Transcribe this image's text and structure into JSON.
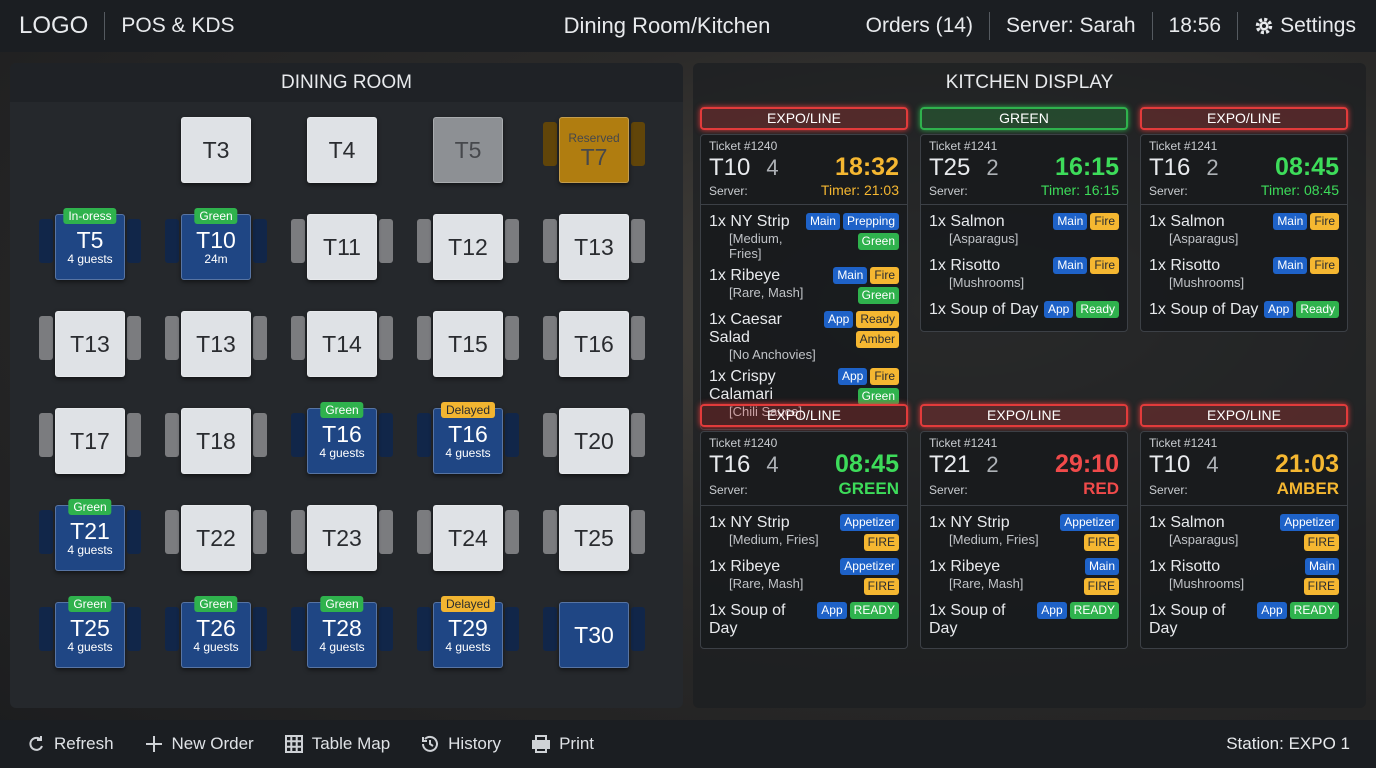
{
  "header": {
    "logo": "LOGO",
    "app": "POS & KDS",
    "title": "Dining Room/Kitchen",
    "orders": "Orders (14)",
    "server": "Server: Sarah",
    "time": "18:56",
    "settings": "Settings"
  },
  "dining": {
    "title": "DINING ROOM",
    "tables": [
      {
        "label": "T3",
        "color": "#dfe2e6"
      },
      {
        "label": "T4",
        "color": "#dfe2e6"
      },
      {
        "label": "T5",
        "color": "#8d9094"
      },
      {
        "label": "T7",
        "top": "Reserved",
        "color": "#b07d10"
      },
      {
        "label": "T5",
        "badge": {
          "text": "In-oress",
          "color": "#2fb24d"
        },
        "sub": "4 guests",
        "color": "#1f4684"
      },
      {
        "label": "T10",
        "badge": {
          "text": "Green",
          "color": "#2fb24d"
        },
        "sub": "24m",
        "color": "#1f4684"
      },
      {
        "label": "T11",
        "color": "#dfe2e6"
      },
      {
        "label": "T12",
        "color": "#dfe2e6"
      },
      {
        "label": "T13",
        "color": "#dfe2e6"
      },
      {
        "label": "T13",
        "color": "#dfe2e6"
      },
      {
        "label": "T13",
        "color": "#dfe2e6"
      },
      {
        "label": "T14",
        "color": "#dfe2e6"
      },
      {
        "label": "T15",
        "color": "#dfe2e6"
      },
      {
        "label": "T16",
        "color": "#dfe2e6"
      },
      {
        "label": "T17",
        "color": "#dfe2e6"
      },
      {
        "label": "T18",
        "color": "#dfe2e6"
      },
      {
        "label": "T16",
        "badge": {
          "text": "Green",
          "color": "#2fb24d"
        },
        "sub": "4 guests",
        "color": "#1f4684"
      },
      {
        "label": "T16",
        "badge": {
          "text": "Delayed",
          "color": "#f2b531"
        },
        "sub": "4 guests",
        "color": "#1f4684"
      },
      {
        "label": "T20",
        "color": "#dfe2e6"
      },
      {
        "label": "T21",
        "badge": {
          "text": "Green",
          "color": "#2fb24d"
        },
        "sub": "4 guests",
        "color": "#1f4684"
      },
      {
        "label": "T22",
        "color": "#dfe2e6"
      },
      {
        "label": "T23",
        "color": "#dfe2e6"
      },
      {
        "label": "T24",
        "color": "#dfe2e6"
      },
      {
        "label": "T25",
        "color": "#dfe2e6"
      },
      {
        "label": "T25",
        "badge": {
          "text": "Green",
          "color": "#2fb24d"
        },
        "sub": "4 guests",
        "color": "#1f4684"
      },
      {
        "label": "T26",
        "badge": {
          "text": "Green",
          "color": "#2fb24d"
        },
        "sub": "4 guests",
        "color": "#1f4684"
      },
      {
        "label": "T28",
        "badge": {
          "text": "Green",
          "color": "#2fb24d"
        },
        "sub": "4 guests",
        "color": "#1f4684"
      },
      {
        "label": "T29",
        "badge": {
          "text": "Delayed",
          "color": "#f2b531"
        },
        "sub": "4 guests",
        "color": "#1f4684"
      },
      {
        "label": "T30",
        "color": "#1f4684"
      }
    ]
  },
  "kitchen": {
    "title": "KITCHEN DISPLAY",
    "tickets": [
      {
        "header": "EXPO/LINE",
        "color": "#e23b3b",
        "ticket": "Ticket #1240",
        "table": "T10",
        "guests": "4",
        "time": "18:32",
        "time_color": "#f5b731",
        "server": "Server:",
        "timer": "Timer: 21:03",
        "items": [
          {
            "name": "1x NY Strip",
            "note": "[Medium, Fries]",
            "tags": [
              [
                {
                  "text": "Main",
                  "color": "#1e62c8"
                },
                {
                  "text": "Prepping",
                  "color": "#1e62c8"
                }
              ],
              [
                {
                  "text": "Green",
                  "color": "#2fb24d"
                }
              ]
            ]
          },
          {
            "name": "1x Ribeye",
            "note": "[Rare, Mash]",
            "tags": [
              [
                {
                  "text": "Main",
                  "color": "#1e62c8"
                },
                {
                  "text": "Fire",
                  "color": "#f5b731"
                }
              ],
              [
                {
                  "text": "Green",
                  "color": "#2fb24d"
                }
              ]
            ]
          },
          {
            "name": "1x Caesar Salad",
            "note": "[No Anchovies]",
            "tags": [
              [
                {
                  "text": "App",
                  "color": "#1e62c8"
                },
                {
                  "text": "Ready",
                  "color": "#f5b731"
                }
              ],
              [
                {
                  "text": "Amber",
                  "color": "#f5b731"
                }
              ]
            ]
          },
          {
            "name": "1x Crispy Calamari",
            "note": "[Chili Sauce]",
            "tags": [
              [
                {
                  "text": "App",
                  "color": "#1e62c8"
                },
                {
                  "text": "Fire",
                  "color": "#f5b731"
                }
              ],
              [
                {
                  "text": "Green",
                  "color": "#2fb24d"
                }
              ]
            ]
          }
        ]
      },
      {
        "header": "GREEN",
        "color": "#2fb24d",
        "ticket": "Ticket #1241",
        "table": "T25",
        "guests": "2",
        "time": "16:15",
        "time_color": "#3ddc5a",
        "server": "Server:",
        "timer": "Timer: 16:15",
        "items": [
          {
            "name": "1x Salmon",
            "note": "[Asparagus]",
            "tags": [
              [
                {
                  "text": "Main",
                  "color": "#1e62c8"
                },
                {
                  "text": "Fire",
                  "color": "#f5b731"
                }
              ]
            ]
          },
          {
            "name": "1x Risotto",
            "note": "[Mushrooms]",
            "tags": [
              [
                {
                  "text": "Main",
                  "color": "#1e62c8"
                },
                {
                  "text": "Fire",
                  "color": "#f5b731"
                }
              ]
            ]
          },
          {
            "name": "1x Soup of Day",
            "tags": [
              [
                {
                  "text": "App",
                  "color": "#1e62c8"
                },
                {
                  "text": "Ready",
                  "color": "#2fb24d"
                }
              ]
            ]
          }
        ]
      },
      {
        "header": "EXPO/LINE",
        "color": "#e23b3b",
        "ticket": "Ticket #1241",
        "table": "T16",
        "guests": "2",
        "time": "08:45",
        "time_color": "#3ddc5a",
        "server": "Server:",
        "timer": "Timer: 08:45",
        "items": [
          {
            "name": "1x Salmon",
            "note": "[Asparagus]",
            "tags": [
              [
                {
                  "text": "Main",
                  "color": "#1e62c8"
                },
                {
                  "text": "Fire",
                  "color": "#f5b731"
                }
              ]
            ]
          },
          {
            "name": "1x Risotto",
            "note": "[Mushrooms]",
            "tags": [
              [
                {
                  "text": "Main",
                  "color": "#1e62c8"
                },
                {
                  "text": "Fire",
                  "color": "#f5b731"
                }
              ]
            ]
          },
          {
            "name": "1x Soup of Day",
            "tags": [
              [
                {
                  "text": "App",
                  "color": "#1e62c8"
                },
                {
                  "text": "Ready",
                  "color": "#2fb24d"
                }
              ]
            ]
          }
        ]
      },
      {
        "header": "EXPO/LINE",
        "color": "#e23b3b",
        "ticket": "Ticket #1240",
        "table": "T16",
        "guests": "4",
        "time": "08:45",
        "time_color": "#3ddc5a",
        "server": "Server:",
        "status": "GREEN",
        "items": [
          {
            "name": "1x NY Strip",
            "note": "[Medium, Fries]",
            "tags": [
              [
                {
                  "text": "Appetizer",
                  "color": "#1e62c8"
                }
              ],
              [
                {
                  "text": "FIRE",
                  "color": "#f5b731"
                }
              ]
            ]
          },
          {
            "name": "1x Ribeye",
            "note": "[Rare, Mash]",
            "tags": [
              [
                {
                  "text": "Appetizer",
                  "color": "#1e62c8"
                }
              ],
              [
                {
                  "text": "FIRE",
                  "color": "#f5b731"
                }
              ]
            ]
          },
          {
            "name": "1x Soup of Day",
            "tags": [
              [
                {
                  "text": "App",
                  "color": "#1e62c8"
                },
                {
                  "text": "READY",
                  "color": "#2fb24d"
                }
              ]
            ]
          }
        ]
      },
      {
        "header": "EXPO/LINE",
        "color": "#e23b3b",
        "ticket": "Ticket #1241",
        "table": "T21",
        "guests": "2",
        "time": "29:10",
        "time_color": "#f04a4a",
        "server": "Server:",
        "status": "RED",
        "items": [
          {
            "name": "1x NY Strip",
            "note": "[Medium, Fries]",
            "tags": [
              [
                {
                  "text": "Appetizer",
                  "color": "#1e62c8"
                }
              ],
              [
                {
                  "text": "FIRE",
                  "color": "#f5b731"
                }
              ]
            ]
          },
          {
            "name": "1x Ribeye",
            "note": "[Rare, Mash]",
            "tags": [
              [
                {
                  "text": "Main",
                  "color": "#1e62c8"
                }
              ],
              [
                {
                  "text": "FIRE",
                  "color": "#f5b731"
                }
              ]
            ]
          },
          {
            "name": "1x Soup of Day",
            "tags": [
              [
                {
                  "text": "App",
                  "color": "#1e62c8"
                },
                {
                  "text": "READY",
                  "color": "#2fb24d"
                }
              ]
            ]
          }
        ]
      },
      {
        "header": "EXPO/LINE",
        "color": "#e23b3b",
        "ticket": "Ticket #1241",
        "table": "T10",
        "guests": "4",
        "time": "21:03",
        "time_color": "#f5b731",
        "server": "Server:",
        "status": "AMBER",
        "items": [
          {
            "name": "1x Salmon",
            "note": "[Asparagus]",
            "tags": [
              [
                {
                  "text": "Appetizer",
                  "color": "#1e62c8"
                }
              ],
              [
                {
                  "text": "FIRE",
                  "color": "#f5b731"
                }
              ]
            ]
          },
          {
            "name": "1x Risotto",
            "note": "[Mushrooms]",
            "tags": [
              [
                {
                  "text": "Main",
                  "color": "#1e62c8"
                }
              ],
              [
                {
                  "text": "FIRE",
                  "color": "#f5b731"
                }
              ]
            ]
          },
          {
            "name": "1x Soup of Day",
            "tags": [
              [
                {
                  "text": "App",
                  "color": "#1e62c8"
                },
                {
                  "text": "READY",
                  "color": "#2fb24d"
                }
              ]
            ]
          }
        ]
      }
    ]
  },
  "footer": {
    "buttons": [
      "Refresh",
      "New Order",
      "Table Map",
      "History",
      "Print"
    ],
    "station": "Station: EXPO 1"
  }
}
